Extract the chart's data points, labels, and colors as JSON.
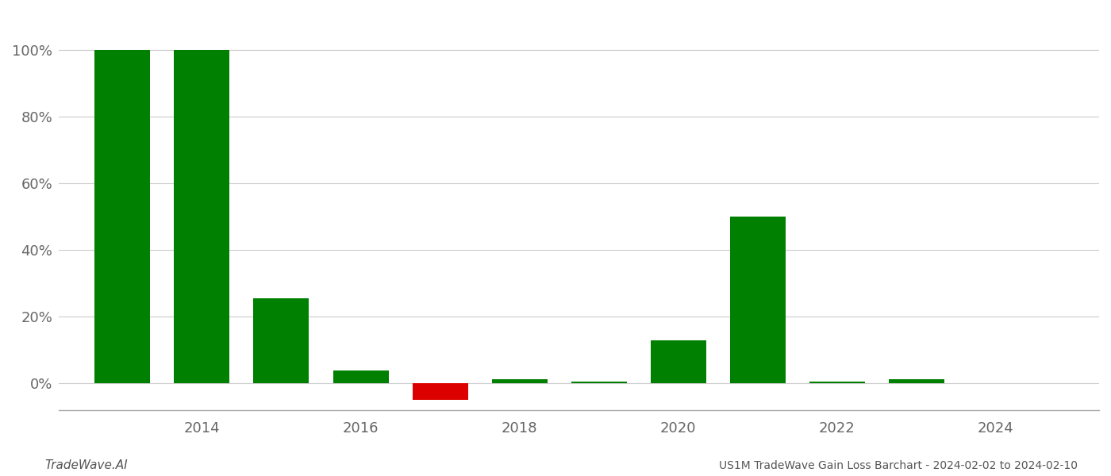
{
  "years": [
    2013,
    2014,
    2015,
    2016,
    2017,
    2018,
    2019,
    2020,
    2021,
    2022,
    2023
  ],
  "values": [
    1.0,
    1.0,
    0.255,
    0.04,
    -0.05,
    0.012,
    0.006,
    0.13,
    0.5,
    0.006,
    0.012
  ],
  "colors": [
    "#008000",
    "#008000",
    "#008000",
    "#008000",
    "#dd0000",
    "#008000",
    "#008000",
    "#008000",
    "#008000",
    "#008000",
    "#008000"
  ],
  "title": "US1M TradeWave Gain Loss Barchart - 2024-02-02 to 2024-02-10",
  "footer_left": "TradeWave.AI",
  "xlim": [
    2012.2,
    2025.3
  ],
  "ylim": [
    -0.08,
    1.1
  ],
  "xticks": [
    2014,
    2016,
    2018,
    2020,
    2022,
    2024
  ],
  "xtick_labels": [
    "2014",
    "2016",
    "2018",
    "2020",
    "2022",
    "2024"
  ],
  "yticks": [
    0.0,
    0.2,
    0.4,
    0.6,
    0.8,
    1.0
  ],
  "ytick_labels": [
    "0%",
    "20%",
    "40%",
    "60%",
    "80%",
    "100%"
  ],
  "background_color": "#ffffff",
  "grid_color": "#cccccc",
  "bar_width": 0.7
}
